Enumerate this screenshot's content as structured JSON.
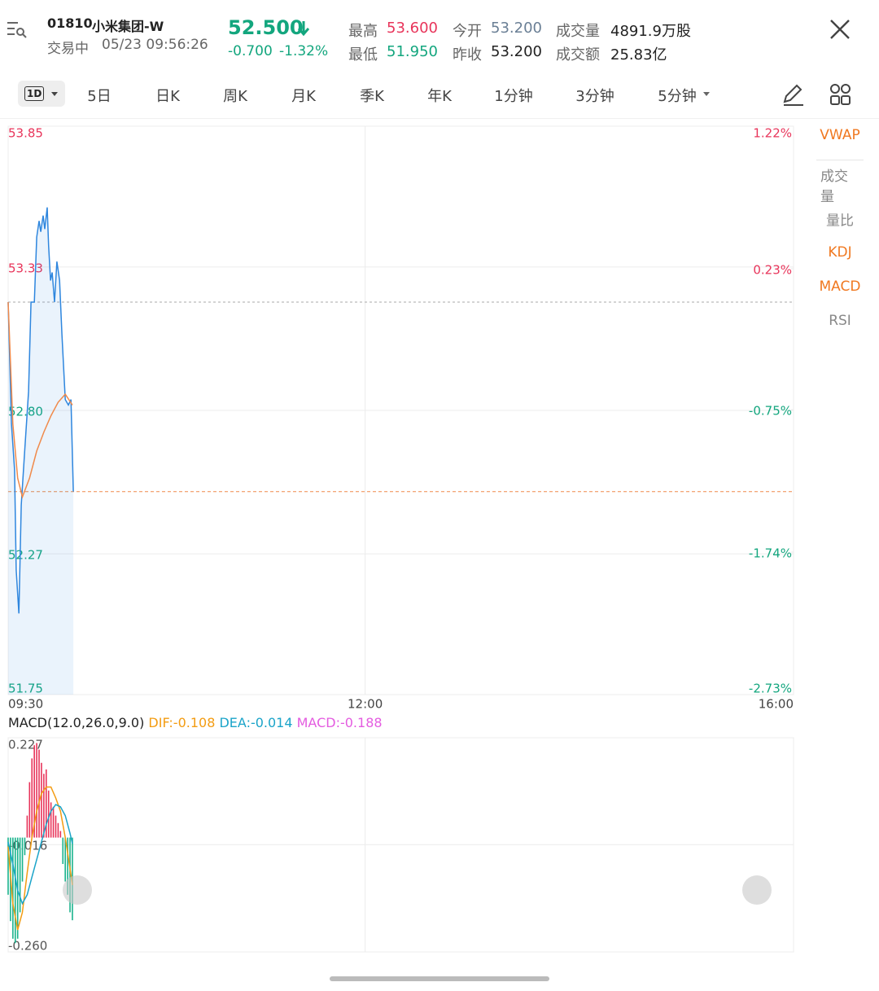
{
  "header": {
    "code": "01810",
    "name": "小米集团-W",
    "status": "交易中",
    "time": "05/23 09:56:26",
    "price": "52.500",
    "change": "-0.700",
    "change_pct": "-1.32%",
    "stats": [
      {
        "label": "最高",
        "value": "53.600"
      },
      {
        "label": "最低",
        "value": "51.950"
      },
      {
        "label": "今开",
        "value": "53.200"
      },
      {
        "label": "昨收",
        "value": "53.200"
      },
      {
        "label": "成交量",
        "value": "4891.9万股"
      },
      {
        "label": "成交额",
        "value": "25.83亿"
      }
    ]
  },
  "tabs": [
    "1D",
    "5日",
    "日K",
    "周K",
    "月K",
    "季K",
    "年K",
    "1分钟",
    "3分钟",
    "5分钟"
  ],
  "indicators": [
    "VWAP",
    "成交量",
    "量比",
    "KDJ",
    "MACD",
    "RSI"
  ],
  "chart_data": [
    {
      "type": "line",
      "xlim": [
        0,
        330
      ],
      "xticks": [
        {
          "value": 0,
          "label": "09:30"
        },
        {
          "value": 150,
          "label": "12:00"
        },
        {
          "value": 330,
          "label": "16:00"
        }
      ],
      "ylim": [
        51.75,
        53.85
      ],
      "yticks": [
        51.75,
        52.27,
        {
          "value": 52.8,
          "label": "52.80"
        },
        53.33,
        53.85
      ],
      "y2lim": [
        -2.73,
        1.22
      ],
      "y2ticks": [
        {
          "value": -2.73,
          "label": "-2.73%"
        },
        {
          "value": -1.74,
          "label": "-1.74%"
        },
        {
          "value": -0.75,
          "label": "-0.75%"
        },
        {
          "value": 0.23,
          "label": "0.23%"
        },
        {
          "value": 1.22,
          "label": "1.22%"
        }
      ],
      "prev_close": 53.2,
      "last_price": 52.5,
      "grid": true,
      "x": [
        0,
        1.4,
        2.7,
        3.4,
        4.5,
        5.5,
        6.8,
        8.6,
        9.6,
        11,
        12,
        13,
        13.7,
        14.7,
        15.4,
        16.4,
        17,
        17.8,
        18.5,
        19.5,
        20.5,
        21.6,
        22.6,
        24,
        25.3,
        26.4,
        27.4
      ],
      "series": [
        {
          "color": "#2e86de",
          "area": true,
          "values": [
            53.2,
            52.75,
            52.58,
            52.21,
            52.05,
            52.45,
            52.63,
            52.87,
            53.2,
            53.2,
            53.44,
            53.5,
            53.46,
            53.52,
            53.47,
            53.55,
            53.41,
            53.28,
            53.31,
            53.2,
            53.35,
            53.28,
            53.08,
            52.84,
            52.82,
            52.84,
            52.5
          ]
        },
        {
          "color": "#f08a4b",
          "x": [
            0,
            2,
            4,
            6,
            9,
            12,
            15,
            18,
            21,
            24,
            27
          ],
          "values": [
            53.2,
            52.75,
            52.55,
            52.48,
            52.55,
            52.65,
            52.72,
            52.78,
            52.83,
            52.86,
            52.82
          ]
        }
      ]
    },
    {
      "type": "bar",
      "title": "MACD(12.0,26.0,9.0)",
      "legend": [
        "DIF:-0.108",
        "DEA:-0.014",
        "MACD:-0.188"
      ],
      "xlim": [
        0,
        330
      ],
      "xticks": [
        0,
        150,
        330
      ],
      "ylim": [
        -0.26,
        0.227
      ],
      "yticks": [
        {
          "value": -0.26,
          "label": "-0.260"
        },
        -0.016,
        0.227
      ],
      "grid": true,
      "up_color": "#e8345a",
      "down_color": "#19b38c",
      "hist_color": "#e45ce0",
      "x": [
        0,
        1,
        2,
        3,
        4,
        5,
        6,
        7,
        8,
        9,
        10,
        11,
        12,
        13,
        14,
        15,
        16,
        17,
        18,
        19,
        20,
        21,
        22,
        23,
        24,
        25,
        26,
        27
      ],
      "values": [
        -0.13,
        -0.19,
        -0.23,
        -0.24,
        -0.23,
        -0.17,
        -0.1,
        -0.04,
        0.05,
        0.126,
        0.18,
        0.21,
        0.215,
        0.2,
        0.17,
        0.145,
        0.155,
        0.107,
        0.08,
        0.07,
        0.05,
        0.033,
        0.015,
        -0.06,
        -0.1,
        -0.13,
        -0.17,
        -0.188
      ],
      "series": [
        {
          "color": "#f39c12",
          "x": [
            0,
            2,
            4,
            6,
            8,
            10,
            12,
            14,
            16,
            18,
            20,
            22,
            24,
            26,
            27
          ],
          "values": [
            -0.02,
            -0.15,
            -0.21,
            -0.17,
            -0.08,
            0,
            0.06,
            0.1,
            0.115,
            0.115,
            0.09,
            0.06,
            0,
            -0.07,
            -0.108
          ]
        },
        {
          "color": "#1ba4c9",
          "x": [
            0,
            2,
            4,
            6,
            8,
            10,
            12,
            14,
            16,
            18,
            20,
            22,
            24,
            26,
            27
          ],
          "values": [
            -0.01,
            -0.06,
            -0.12,
            -0.15,
            -0.13,
            -0.09,
            -0.05,
            -0.01,
            0.03,
            0.06,
            0.075,
            0.07,
            0.05,
            0.01,
            -0.014
          ]
        }
      ]
    }
  ]
}
